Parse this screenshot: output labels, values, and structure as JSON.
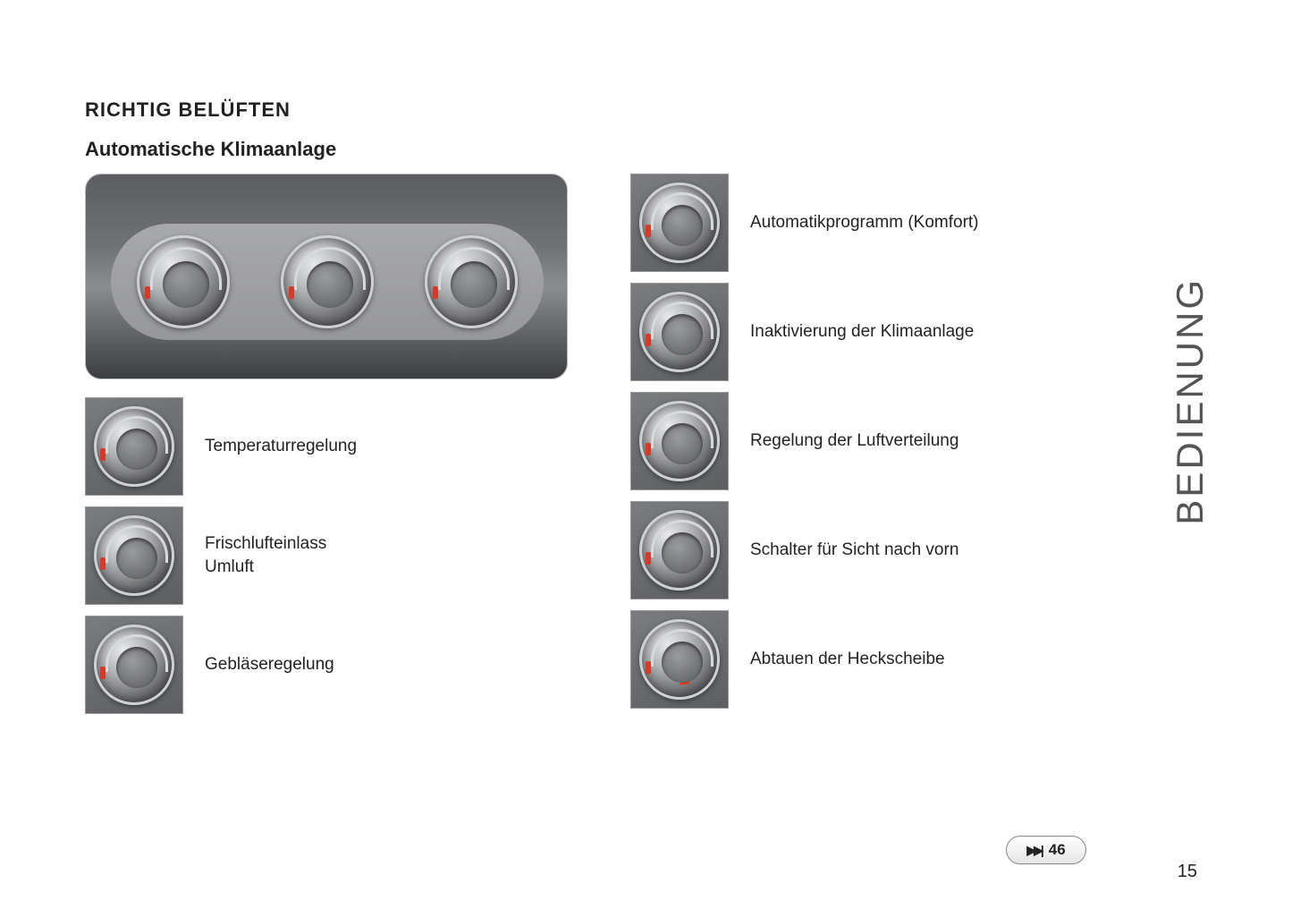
{
  "heading": "RICHTIG BELÜFTEN",
  "subheading": "Automatische Klimaanlage",
  "side_tab": "BEDIENUNG",
  "page_ref": "46",
  "page_number": "15",
  "left_items": [
    {
      "label": "Temperaturregelung",
      "arrow": null
    },
    {
      "label": "Frischlufteinlass\nUmluft",
      "arrow": "a"
    },
    {
      "label": "Gebläseregelung",
      "arrow": null
    }
  ],
  "right_items": [
    {
      "label": "Automatikprogramm (Komfort)",
      "arrow": null
    },
    {
      "label": "Inaktivierung der Klimaanlage",
      "arrow": "b"
    },
    {
      "label": "Regelung der Luftverteilung",
      "arrow": null
    },
    {
      "label": "Schalter für Sicht nach vorn",
      "arrow": null
    },
    {
      "label": "Abtauen der Heckscheibe",
      "arrow": "c"
    }
  ],
  "colors": {
    "text": "#222222",
    "accent_red": "#e03522",
    "dial_light": "#e8e9eb",
    "dial_dark": "#3a3b3e",
    "panel_bg": "#96979a",
    "thumb_border": "#999999"
  }
}
